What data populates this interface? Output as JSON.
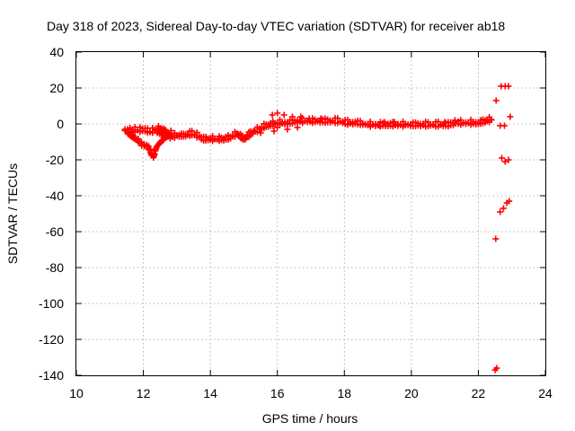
{
  "chart_data": {
    "type": "scatter",
    "title": "Day 318 of 2023, Sidereal Day-to-day VTEC variation (SDTVAR) for receiver ab18",
    "xlabel": "GPS time / hours",
    "ylabel": "SDTVAR / TECUs",
    "xlim": [
      10,
      24
    ],
    "ylim": [
      -140,
      40
    ],
    "x_ticks": [
      10,
      12,
      14,
      16,
      18,
      20,
      22,
      24
    ],
    "y_ticks": [
      40,
      20,
      0,
      -20,
      -40,
      -60,
      -80,
      -100,
      -120,
      -140
    ],
    "grid": true,
    "marker": "plus",
    "color": "#ff0000",
    "series": [
      {
        "name": "SDTVAR",
        "trace": [
          [
            11.45,
            -3
          ],
          [
            11.6,
            -3
          ],
          [
            11.75,
            -3
          ],
          [
            11.9,
            -3
          ],
          [
            12.05,
            -3
          ],
          [
            12.2,
            -4
          ],
          [
            12.35,
            -3
          ],
          [
            12.55,
            -5
          ],
          [
            12.8,
            -7
          ],
          [
            13.0,
            -6
          ],
          [
            13.2,
            -6
          ],
          [
            13.45,
            -5
          ],
          [
            13.6,
            -6
          ],
          [
            13.8,
            -8
          ],
          [
            14.0,
            -8
          ],
          [
            14.2,
            -8
          ],
          [
            14.4,
            -8
          ],
          [
            14.6,
            -7
          ],
          [
            14.8,
            -5
          ],
          [
            15.0,
            -8
          ],
          [
            15.2,
            -5
          ],
          [
            15.4,
            -3
          ],
          [
            15.6,
            -1
          ],
          [
            15.8,
            0
          ],
          [
            16.0,
            1
          ],
          [
            16.3,
            1
          ],
          [
            16.6,
            2
          ],
          [
            16.9,
            2
          ],
          [
            17.2,
            2
          ],
          [
            17.5,
            2
          ],
          [
            17.8,
            2
          ],
          [
            18.1,
            1
          ],
          [
            18.4,
            1
          ],
          [
            18.7,
            0
          ],
          [
            19.0,
            0
          ],
          [
            19.3,
            0
          ],
          [
            19.6,
            0
          ],
          [
            19.9,
            0
          ],
          [
            20.2,
            0
          ],
          [
            20.5,
            0
          ],
          [
            20.8,
            0
          ],
          [
            21.1,
            0
          ],
          [
            21.4,
            1
          ],
          [
            21.7,
            1
          ],
          [
            22.0,
            1
          ],
          [
            22.2,
            2
          ],
          [
            22.45,
            3
          ]
        ],
        "band": [
          [
            15.85,
            5
          ],
          [
            16.0,
            6
          ],
          [
            16.2,
            5
          ],
          [
            16.45,
            4
          ],
          [
            16.7,
            4
          ],
          [
            16.95,
            3
          ],
          [
            17.3,
            3
          ],
          [
            16.0,
            -2
          ],
          [
            16.3,
            -3
          ],
          [
            16.6,
            -2
          ],
          [
            15.9,
            -4
          ],
          [
            15.5,
            -5
          ],
          [
            15.3,
            -4
          ],
          [
            19.05,
            -1
          ],
          [
            19.3,
            -1
          ],
          [
            19.5,
            1
          ],
          [
            19.2,
            1
          ],
          [
            21.0,
            1
          ],
          [
            21.3,
            2
          ]
        ],
        "branch": [
          [
            11.55,
            -5
          ],
          [
            11.7,
            -7
          ],
          [
            11.85,
            -9
          ],
          [
            11.95,
            -11
          ],
          [
            12.1,
            -12
          ],
          [
            12.2,
            -14
          ],
          [
            12.25,
            -17
          ],
          [
            12.3,
            -18
          ],
          [
            12.4,
            -12
          ],
          [
            12.5,
            -10
          ],
          [
            12.6,
            -8
          ],
          [
            12.7,
            -6
          ],
          [
            12.45,
            -2
          ],
          [
            12.6,
            -3
          ],
          [
            12.75,
            -5
          ],
          [
            12.9,
            -4
          ]
        ],
        "extremes": [
          [
            22.53,
            13
          ],
          [
            22.68,
            21
          ],
          [
            22.8,
            21
          ],
          [
            22.9,
            21
          ],
          [
            22.95,
            4
          ],
          [
            22.65,
            -1
          ],
          [
            22.78,
            -1
          ],
          [
            22.7,
            -19
          ],
          [
            22.8,
            -21
          ],
          [
            22.9,
            -20
          ],
          [
            22.65,
            -49
          ],
          [
            22.75,
            -47
          ],
          [
            22.85,
            -44
          ],
          [
            22.92,
            -43
          ],
          [
            22.52,
            -64
          ],
          [
            22.55,
            -136
          ],
          [
            22.5,
            -137
          ]
        ]
      }
    ]
  }
}
